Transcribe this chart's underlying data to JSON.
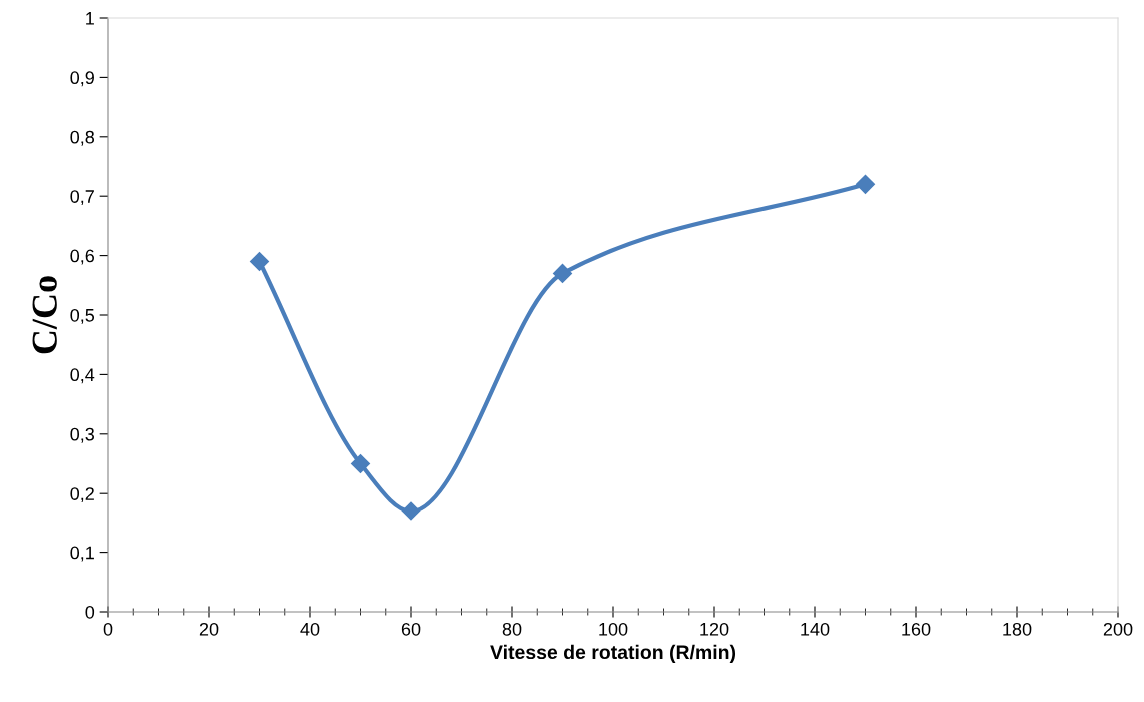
{
  "chart_data": {
    "type": "line",
    "xlabel": "Vitesse de rotation (R/min)",
    "ylabel": "C/Co",
    "x": [
      30,
      50,
      60,
      90,
      150
    ],
    "series": [
      {
        "color": "#4a7ebb",
        "values": [
          0.59,
          0.25,
          0.17,
          0.57,
          0.72
        ]
      }
    ],
    "xlim": [
      0,
      200
    ],
    "xticks": [
      0,
      20,
      40,
      60,
      80,
      100,
      120,
      140,
      160,
      180,
      200
    ],
    "ylim": [
      0,
      1
    ],
    "yticks": [
      0,
      {
        "value": 0.1,
        "label": "0,1"
      },
      {
        "value": 0.2,
        "label": "0,2"
      },
      {
        "value": 0.3,
        "label": "0,3"
      },
      {
        "value": 0.4,
        "label": "0,4"
      },
      {
        "value": 0.5,
        "label": "0,5"
      },
      {
        "value": 0.6,
        "label": "0,6"
      },
      {
        "value": 0.7,
        "label": "0,7"
      },
      {
        "value": 0.8,
        "label": "0,8"
      },
      {
        "value": 0.9,
        "label": "0,9"
      },
      1
    ],
    "marker": "diamond",
    "line_style": "solid",
    "grid": false,
    "legend": false
  }
}
